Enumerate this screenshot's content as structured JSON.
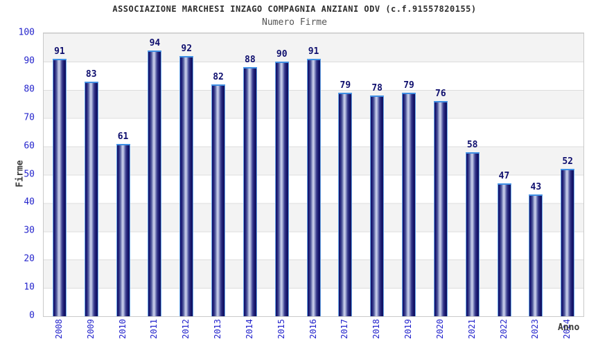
{
  "chart_data": {
    "type": "bar",
    "title": "ASSOCIAZIONE MARCHESI INZAGO COMPAGNIA ANZIANI ODV (c.f.91557820155)",
    "subtitle": "Numero Firme",
    "categories": [
      "2008",
      "2009",
      "2010",
      "2011",
      "2012",
      "2013",
      "2014",
      "2015",
      "2016",
      "2017",
      "2018",
      "2019",
      "2020",
      "2021",
      "2022",
      "2023",
      "2024"
    ],
    "values": [
      91,
      83,
      61,
      94,
      92,
      82,
      88,
      90,
      91,
      79,
      78,
      79,
      76,
      58,
      47,
      43,
      52
    ],
    "xlabel": "Anno",
    "ylabel": "Firme",
    "ylim": [
      0,
      100
    ],
    "ytick_step": 10,
    "grid": "horizontal-bands",
    "legend": "none",
    "colors": {
      "bar_dark": "#121266",
      "bar_highlight": "#ced3ec",
      "bar_outline": "#6aa7e8",
      "bar_cap": "#3f8fe4",
      "tick_label": "#2424cc",
      "value_label": "#0f0f6e",
      "band": "#f3f3f3",
      "gridline": "#dcdcdc",
      "title_text": "#2d2d2d",
      "subtitle_text": "#545454"
    }
  }
}
